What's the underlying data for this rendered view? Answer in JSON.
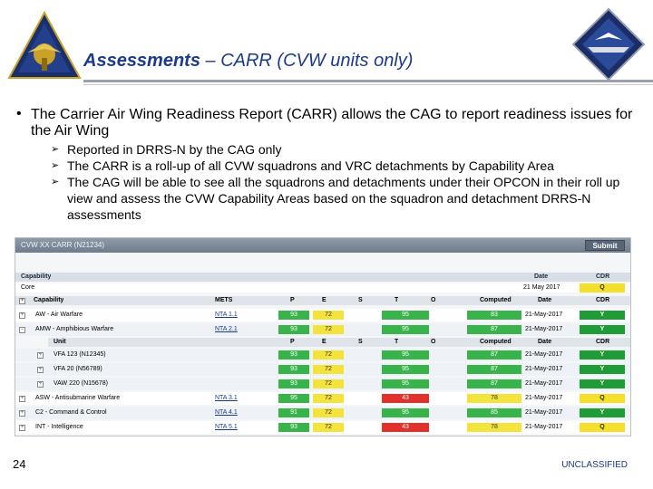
{
  "header": {
    "title_main": "Assessments",
    "title_sub": " – CARR (CVW units only)"
  },
  "bullet": {
    "main": "The Carrier Air Wing Readiness Report (CARR) allows the CAG to report readiness issues for the Air Wing",
    "subs": [
      "Reported in DRRS-N by the CAG only",
      "The CARR is a roll-up of all CVW squadrons and VRC detachments by Capability Area",
      "The CAG will be able to see all the squadrons and detachments under their OPCON in their roll up view and assess the CVW Capability Areas based on the squadron and detachment DRRS-N assessments"
    ]
  },
  "app": {
    "title": "CVW XX CARR (N21234)",
    "submit": "Submit",
    "capability_header": {
      "label": "Capability",
      "date": "Date",
      "cdr": "CDR"
    },
    "core": {
      "label": "Core",
      "date": "21 May 2017",
      "cdr": "Q"
    },
    "cap_cols": {
      "capability": "Capability",
      "mets": "METS",
      "p": "P",
      "e": "E",
      "s": "S",
      "t": "T",
      "o": "O",
      "computed": "Computed",
      "date": "Date",
      "cdr": "CDR"
    },
    "unit_cols": {
      "unit": "Unit",
      "p": "P",
      "e": "E",
      "s": "S",
      "t": "T",
      "o": "O",
      "computed": "Computed",
      "date": "Date",
      "cdr": "CDR"
    },
    "rows_top": [
      {
        "name": "AW - Air Warfare",
        "mets": "NTA 1.1",
        "p": "93",
        "e": "72",
        "t": "95",
        "computed": "83",
        "date": "21-May-2017",
        "cdr": "Y"
      },
      {
        "name": "AMW - Amphibious Warfare",
        "mets": "NTA 2.1",
        "p": "93",
        "e": "72",
        "t": "95",
        "computed": "87",
        "date": "21-May-2017",
        "cdr": "Y"
      }
    ],
    "units": [
      {
        "name": "VFA 123 (N12345)",
        "p": "93",
        "e": "72",
        "t": "95",
        "computed": "87",
        "date": "21-May-2017",
        "cdr": "Y"
      },
      {
        "name": "VFA 20 (N56789)",
        "p": "93",
        "e": "72",
        "t": "95",
        "computed": "87",
        "date": "21-May-2017",
        "cdr": "Y"
      },
      {
        "name": "VAW 220 (N15678)",
        "p": "93",
        "e": "72",
        "t": "95",
        "computed": "87",
        "date": "21-May-2017",
        "cdr": "Y"
      }
    ],
    "rows_bottom": [
      {
        "name": "ASW - Antisubmarine Warfare",
        "mets": "NTA 3.1",
        "p": "95",
        "e": "72",
        "t": "43",
        "computed": "78",
        "date": "21-May-2017",
        "cdr": "Q",
        "t_color": "red",
        "comp_color": "yellow",
        "cdr_color": "yellow"
      },
      {
        "name": "C2 - Command & Control",
        "mets": "NTA 4.1",
        "p": "91",
        "e": "72",
        "t": "95",
        "computed": "85",
        "date": "21-May-2017",
        "cdr": "Y",
        "t_color": "green",
        "comp_color": "green",
        "cdr_color": "green"
      },
      {
        "name": "INT - Intelligence",
        "mets": "NTA 5.1",
        "p": "93",
        "e": "72",
        "t": "43",
        "computed": "78",
        "date": "21-May-2017",
        "cdr": "Q",
        "t_color": "red",
        "comp_color": "yellow",
        "cdr_color": "yellow"
      }
    ]
  },
  "footer": {
    "page_number": "24",
    "classification": "UNCLASSIFIED"
  },
  "colors": {
    "title": "#1b3a8c",
    "green": "#38b44a",
    "yellow": "#f3e33a",
    "red": "#e2312b"
  }
}
